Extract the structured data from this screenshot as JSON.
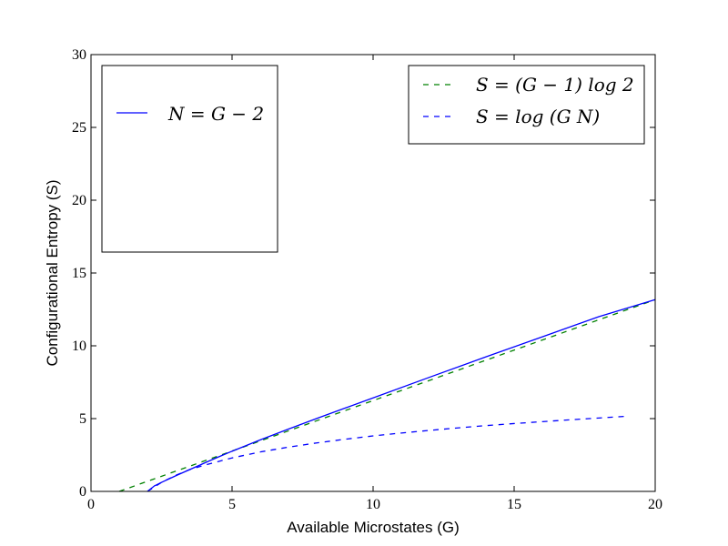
{
  "chart_data": {
    "type": "line",
    "xlabel": "Available Microstates (G)",
    "ylabel": "Configurational Entropy (S)",
    "xlim": [
      0,
      20
    ],
    "ylim": [
      0,
      30
    ],
    "xticks": [
      0,
      5,
      10,
      15,
      20
    ],
    "yticks": [
      0,
      5,
      10,
      15,
      20,
      25,
      30
    ],
    "grid": false,
    "legends": [
      {
        "placement": "upper-left",
        "entries": [
          "N = G − 2"
        ]
      },
      {
        "placement": "upper-right",
        "entries": [
          "S = (G − 1) log 2",
          "S = log (G N)"
        ]
      }
    ],
    "series": [
      {
        "name": "S = (G − 1) log 2",
        "color": "#008000",
        "style": "dashed",
        "x": [
          1,
          20
        ],
        "y": [
          0,
          13.17
        ]
      },
      {
        "name": "N = G − 2",
        "color": "#0000ff",
        "style": "solid",
        "x": [
          2,
          2.25,
          2.5,
          3,
          3.5,
          4,
          4.5,
          5,
          6,
          7,
          8,
          9,
          10,
          12,
          14,
          16,
          18,
          20
        ],
        "y": [
          0,
          0.38,
          0.62,
          1.07,
          1.5,
          1.93,
          2.35,
          2.76,
          3.54,
          4.28,
          5.01,
          5.72,
          6.42,
          7.84,
          9.24,
          10.62,
          12.0,
          13.17
        ]
      },
      {
        "name": "S = log (G N)",
        "color": "#0000ff",
        "style": "dashed",
        "x": [
          2,
          2.5,
          3,
          3.5,
          4,
          5,
          6,
          7,
          8,
          9,
          10,
          11,
          12,
          13,
          14,
          15,
          16,
          17,
          18,
          19
        ],
        "y": [
          0,
          0.62,
          1.1,
          1.5,
          1.79,
          2.3,
          2.71,
          3.04,
          3.33,
          3.58,
          3.81,
          4.01,
          4.19,
          4.36,
          4.52,
          4.66,
          4.79,
          4.92,
          5.04,
          5.16
        ]
      }
    ]
  }
}
